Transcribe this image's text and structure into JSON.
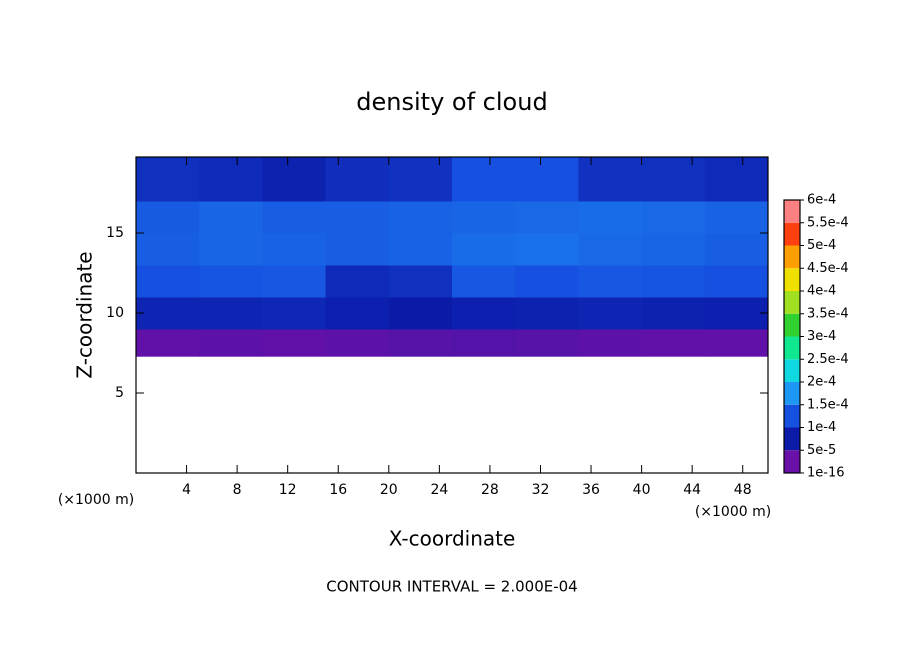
{
  "chart_data": {
    "type": "contour",
    "title": "density of cloud",
    "x_label": "X-coordinate",
    "y_label": "Z-coordinate",
    "x_unit_label": "(×1000 m)",
    "footer": "CONTOUR INTERVAL = 2.000E-04",
    "xlim": [
      0,
      50
    ],
    "ylim": [
      0,
      19.75
    ],
    "xticks": [
      4,
      8,
      12,
      16,
      20,
      24,
      28,
      32,
      36,
      40,
      44,
      48
    ],
    "yticks": [
      5,
      10,
      15
    ],
    "xbins": [
      0,
      5,
      10,
      15,
      20,
      25,
      30,
      35,
      40,
      45,
      50
    ],
    "ybins": [
      7.3,
      9,
      11,
      13,
      15,
      17,
      19.75
    ],
    "z": [
      [
        1e-05,
        1.5e-05,
        1e-05,
        1.5e-05,
        2e-05,
        2.5e-05,
        2e-05,
        1.5e-05,
        1e-05,
        1e-05
      ],
      [
        7e-05,
        7e-05,
        7.5e-05,
        6e-05,
        5e-05,
        6e-05,
        6.5e-05,
        7e-05,
        6.5e-05,
        6e-05
      ],
      [
        0.0001,
        0.000105,
        0.00011,
        8e-05,
        9e-05,
        0.00011,
        0.0001,
        0.00011,
        0.000105,
        0.0001
      ],
      [
        0.00012,
        0.00013,
        0.000125,
        0.00012,
        0.000125,
        0.00014,
        0.000145,
        0.000135,
        0.00013,
        0.00012
      ],
      [
        0.000115,
        0.00013,
        0.00012,
        0.00012,
        0.000125,
        0.00013,
        0.000135,
        0.00014,
        0.000135,
        0.000125
      ],
      [
        9e-05,
        8e-05,
        6.5e-05,
        8.5e-05,
        9.5e-05,
        0.0001,
        0.0001,
        9.5e-05,
        9e-05,
        8e-05
      ]
    ],
    "colorbar": {
      "ticks": [
        {
          "value": 1e-16,
          "label": "1e-16"
        },
        {
          "value": 5e-05,
          "label": "5e-5"
        },
        {
          "value": 0.0001,
          "label": "1e-4"
        },
        {
          "value": 0.00015,
          "label": "1.5e-4"
        },
        {
          "value": 0.0002,
          "label": "2e-4"
        },
        {
          "value": 0.00025,
          "label": "2.5e-4"
        },
        {
          "value": 0.0003,
          "label": "3e-4"
        },
        {
          "value": 0.00035,
          "label": "3.5e-4"
        },
        {
          "value": 0.0004,
          "label": "4e-4"
        },
        {
          "value": 0.00045,
          "label": "4.5e-4"
        },
        {
          "value": 0.0005,
          "label": "5e-4"
        },
        {
          "value": 0.00055,
          "label": "5.5e-4"
        },
        {
          "value": 0.0006,
          "label": "6e-4"
        }
      ],
      "colors": [
        "#6a10a8",
        "#0c1aa8",
        "#1650e0",
        "#1e96f4",
        "#10d8e0",
        "#10e890",
        "#30d030",
        "#a0e020",
        "#f0e000",
        "#ffa000",
        "#ff4010",
        "#ff8080"
      ]
    }
  }
}
